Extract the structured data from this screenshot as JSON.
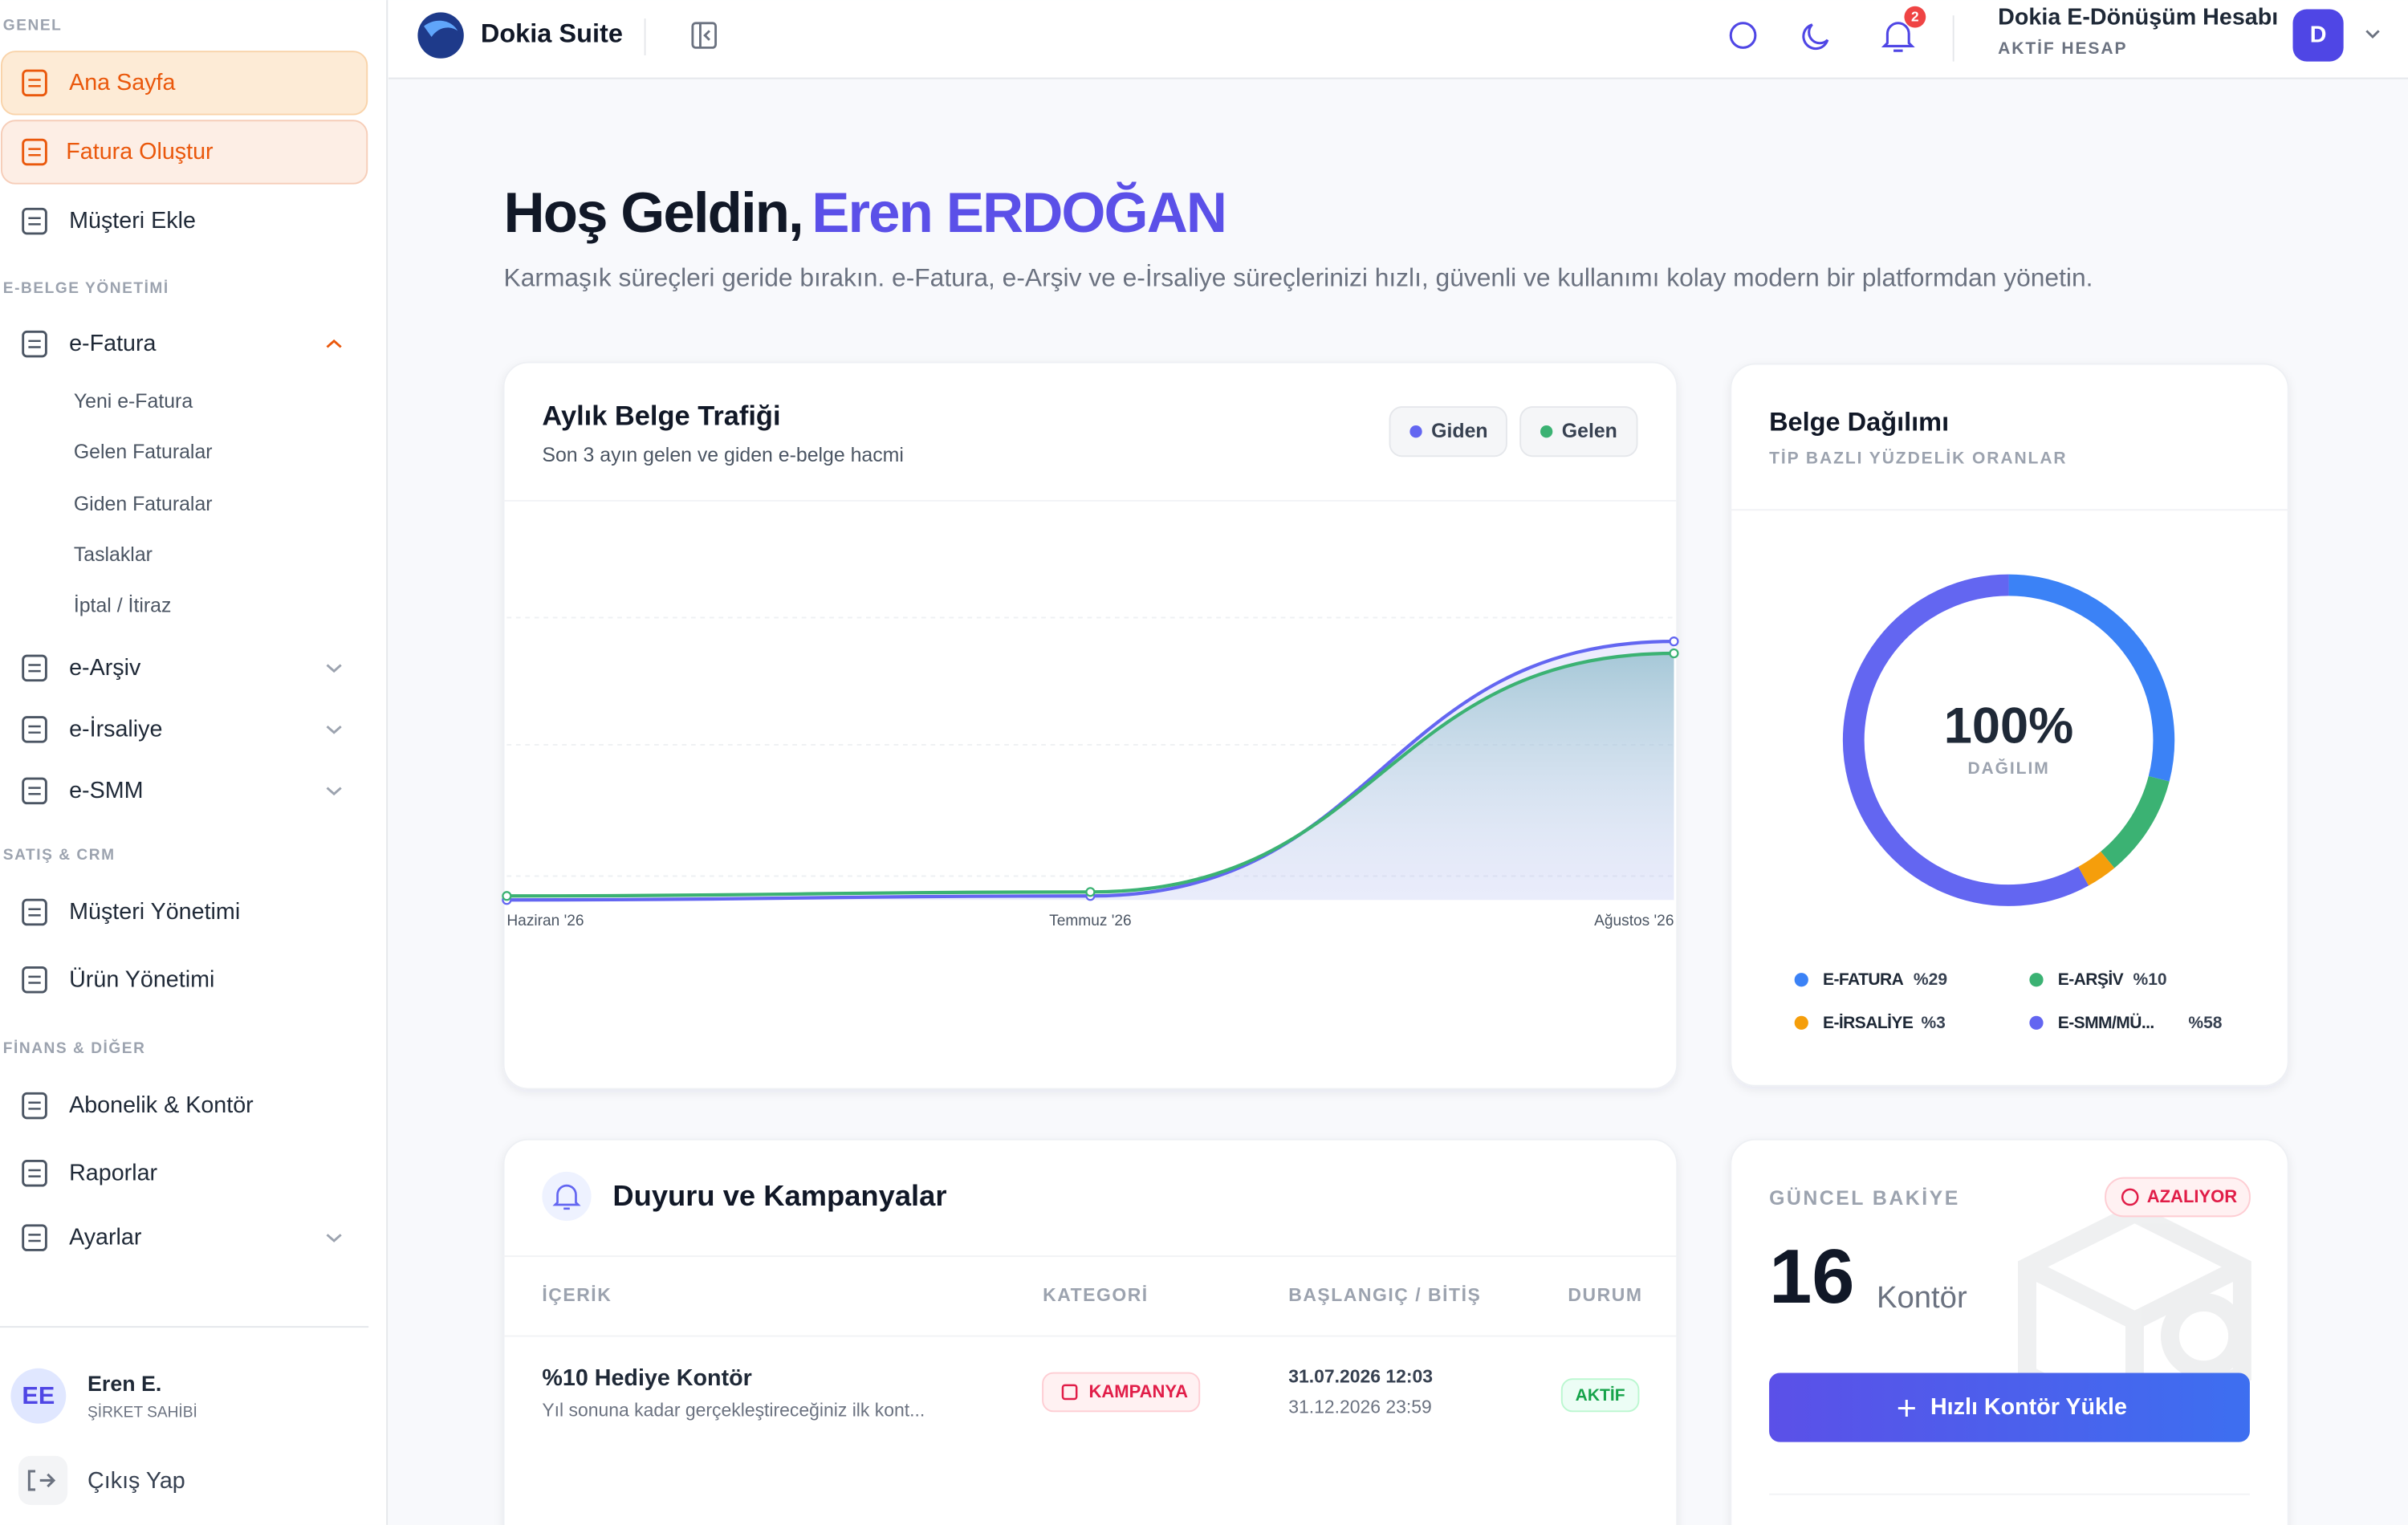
{
  "topbar": {
    "brand": "Dokia Suite",
    "notifications": 2,
    "account_name": "Dokia E-Dönüşüm Hesabı",
    "account_status": "AKTİF HESAP",
    "avatar": "D"
  },
  "sidebar": {
    "groups": [
      {
        "title": "GENEL",
        "items": [
          {
            "label": "Ana Sayfa"
          },
          {
            "label": "Fatura Oluştur"
          },
          {
            "label": "Müşteri Ekle"
          }
        ]
      },
      {
        "title": "E-BELGE YÖNETİMİ",
        "items": [
          {
            "label": "e-Fatura",
            "children": [
              "Yeni e-Fatura",
              "Gelen Faturalar",
              "Giden Faturalar",
              "Taslaklar",
              "İptal / İtiraz"
            ]
          },
          {
            "label": "e-Arşiv"
          },
          {
            "label": "e-İrsaliye"
          },
          {
            "label": "e-SMM"
          }
        ]
      },
      {
        "title": "SATIŞ & CRM",
        "items": [
          {
            "label": "Müşteri Yönetimi"
          },
          {
            "label": "Ürün Yönetimi"
          }
        ]
      },
      {
        "title": "FİNANS & DİĞER",
        "items": [
          {
            "label": "Abonelik & Kontör"
          },
          {
            "label": "Raporlar"
          },
          {
            "label": "Ayarlar"
          }
        ]
      }
    ],
    "user": {
      "initials": "EE",
      "name": "Eren E.",
      "role": "ŞİRKET SAHİBİ"
    },
    "logout": "Çıkış Yap"
  },
  "welcome": {
    "greeting": "Hoş Geldin,",
    "name": "Eren ERDOĞAN",
    "subtitle": "Karmaşık süreçleri geride bırakın. e-Fatura, e-Arşiv ve e-İrsaliye süreçlerinizi hızlı, güvenli ve kullanımı kolay modern bir platformdan yönetin."
  },
  "chart_data": [
    {
      "type": "line",
      "title": "Aylık Belge Trafiği",
      "subtitle": "Son 3 ayın gelen ve giden e-belge hacmi",
      "categories": [
        "Haziran '26",
        "Temmuz '26",
        "Ağustos '26"
      ],
      "series": [
        {
          "name": "Giden",
          "color": "#6366f1",
          "values": [
            0,
            1,
            65
          ]
        },
        {
          "name": "Gelen",
          "color": "#3bb273",
          "values": [
            1,
            2,
            62
          ]
        }
      ],
      "ylim": [
        0,
        100
      ],
      "grid": true
    },
    {
      "type": "donut",
      "title": "Belge Dağılımı",
      "subtitle": "TİP BAZLI YÜZDELİK ORANLAR",
      "center_label": "100%",
      "center_caption": "DAĞILIM",
      "categories": [
        "E-FATURA",
        "E-ARŞİV",
        "E-İRSALİYE",
        "E-SMM/MÜ..."
      ],
      "values": [
        29,
        10,
        3,
        58
      ],
      "value_labels": [
        "%29",
        "%10",
        "%3",
        "%58"
      ],
      "colors": [
        "#3b82f6",
        "#3bb273",
        "#f59e0b",
        "#6366f1"
      ]
    }
  ],
  "announcements": {
    "title": "Duyuru ve Kampanyalar",
    "headers": [
      "İÇERİK",
      "KATEGORİ",
      "BAŞLANGIÇ / BİTİŞ",
      "DURUM"
    ],
    "rows": [
      {
        "title": "%10 Hediye Kontör",
        "description": "Yıl sonuna kadar gerçekleştireceğiniz ilk kont...",
        "category": "KAMPANYA",
        "start": "31.07.2026 12:03",
        "end": "31.12.2026 23:59",
        "status": "AKTİF"
      }
    ]
  },
  "balance": {
    "title": "GÜNCEL BAKİYE",
    "trend": "AZALIYOR",
    "amount": 16,
    "unit": "Kontör",
    "action": "Hızlı Kontör Yükle"
  }
}
